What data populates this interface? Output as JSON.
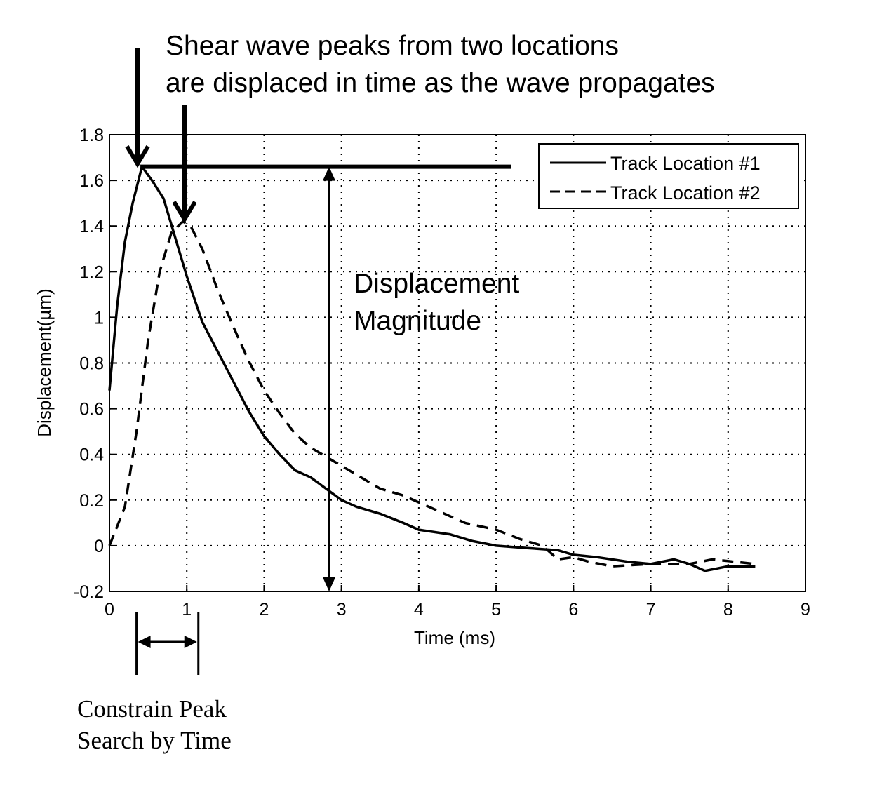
{
  "chart_data": {
    "type": "line",
    "title_lines": [
      "Shear wave peaks from two locations",
      "are displaced in time as the wave propagates"
    ],
    "xlabel": "Time (ms)",
    "ylabel": "Displacement(µm)",
    "xlim": [
      0,
      9
    ],
    "ylim": [
      -0.2,
      1.8
    ],
    "xticks": [
      "0",
      "1",
      "2",
      "3",
      "4",
      "5",
      "6",
      "7",
      "8",
      "9"
    ],
    "yticks": [
      "-0.2",
      "0",
      "0.2",
      "0.4",
      "0.6",
      "0.8",
      "1",
      "1.2",
      "1.4",
      "1.6",
      "1.8"
    ],
    "grid": true,
    "legend_position": "top-right",
    "series": [
      {
        "name": "Track Location #1",
        "style": "solid",
        "x": [
          0,
          0.1,
          0.2,
          0.3,
          0.42,
          0.55,
          0.7,
          0.85,
          1.0,
          1.2,
          1.4,
          1.6,
          1.8,
          2.0,
          2.2,
          2.4,
          2.6,
          2.8,
          3.0,
          3.2,
          3.5,
          3.8,
          4.0,
          4.4,
          4.7,
          5.0,
          5.4,
          5.8,
          6.0,
          6.3,
          6.7,
          7.0,
          7.3,
          7.5,
          7.7,
          8.0,
          8.35
        ],
        "y": [
          0.68,
          1.05,
          1.33,
          1.5,
          1.66,
          1.6,
          1.52,
          1.35,
          1.18,
          0.98,
          0.85,
          0.72,
          0.59,
          0.48,
          0.4,
          0.33,
          0.3,
          0.25,
          0.2,
          0.17,
          0.14,
          0.1,
          0.07,
          0.05,
          0.02,
          0.0,
          -0.01,
          -0.02,
          -0.04,
          -0.05,
          -0.07,
          -0.08,
          -0.06,
          -0.08,
          -0.11,
          -0.09,
          -0.09
        ]
      },
      {
        "name": "Track Location #2",
        "style": "dashed",
        "x": [
          0,
          0.2,
          0.35,
          0.5,
          0.65,
          0.8,
          0.95,
          1.05,
          1.2,
          1.4,
          1.6,
          1.8,
          2.0,
          2.2,
          2.4,
          2.6,
          2.9,
          3.2,
          3.5,
          3.8,
          4.2,
          4.6,
          5.0,
          5.3,
          5.6,
          5.8,
          6.0,
          6.2,
          6.5,
          7.0,
          7.5,
          7.8,
          8.35
        ],
        "y": [
          0.0,
          0.17,
          0.5,
          0.9,
          1.2,
          1.37,
          1.42,
          1.4,
          1.3,
          1.12,
          0.96,
          0.81,
          0.68,
          0.58,
          0.49,
          0.43,
          0.37,
          0.31,
          0.25,
          0.22,
          0.16,
          0.1,
          0.07,
          0.03,
          0.0,
          -0.06,
          -0.05,
          -0.07,
          -0.09,
          -0.08,
          -0.08,
          -0.06,
          -0.08
        ]
      }
    ],
    "annotations": {
      "magnitude_label_lines": [
        "Displacement",
        "Magnitude"
      ],
      "constrain_label_lines": [
        "Constrain Peak",
        "Search by Time"
      ],
      "peak_level": 1.66,
      "magnitude_arrow_x": 2.84,
      "constrain_window": [
        0.35,
        1.15
      ],
      "peak1_x": 0.4,
      "peak2_x": 0.97,
      "peak2_y": 1.42
    }
  }
}
